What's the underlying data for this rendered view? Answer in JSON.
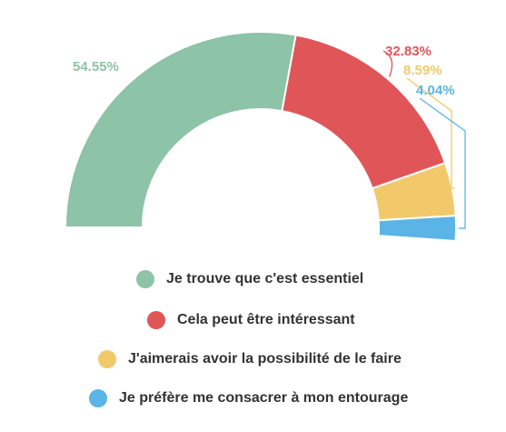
{
  "chart_data": {
    "type": "pie",
    "variant": "semi-donut",
    "categories": [
      "Je trouve que c'est essentiel",
      "Cela peut être intéressant",
      "J'aimerais avoir la possibilité de le faire",
      "Je préfère me consacrer à mon entourage"
    ],
    "values": [
      54.55,
      32.83,
      8.59,
      4.04
    ],
    "labels": [
      "54.55%",
      "32.83%",
      "8.59%",
      "4.04%"
    ],
    "colors": [
      "#8dc3a6",
      "#e05558",
      "#f2c96a",
      "#5ab4e5"
    ],
    "legend_position": "bottom"
  }
}
